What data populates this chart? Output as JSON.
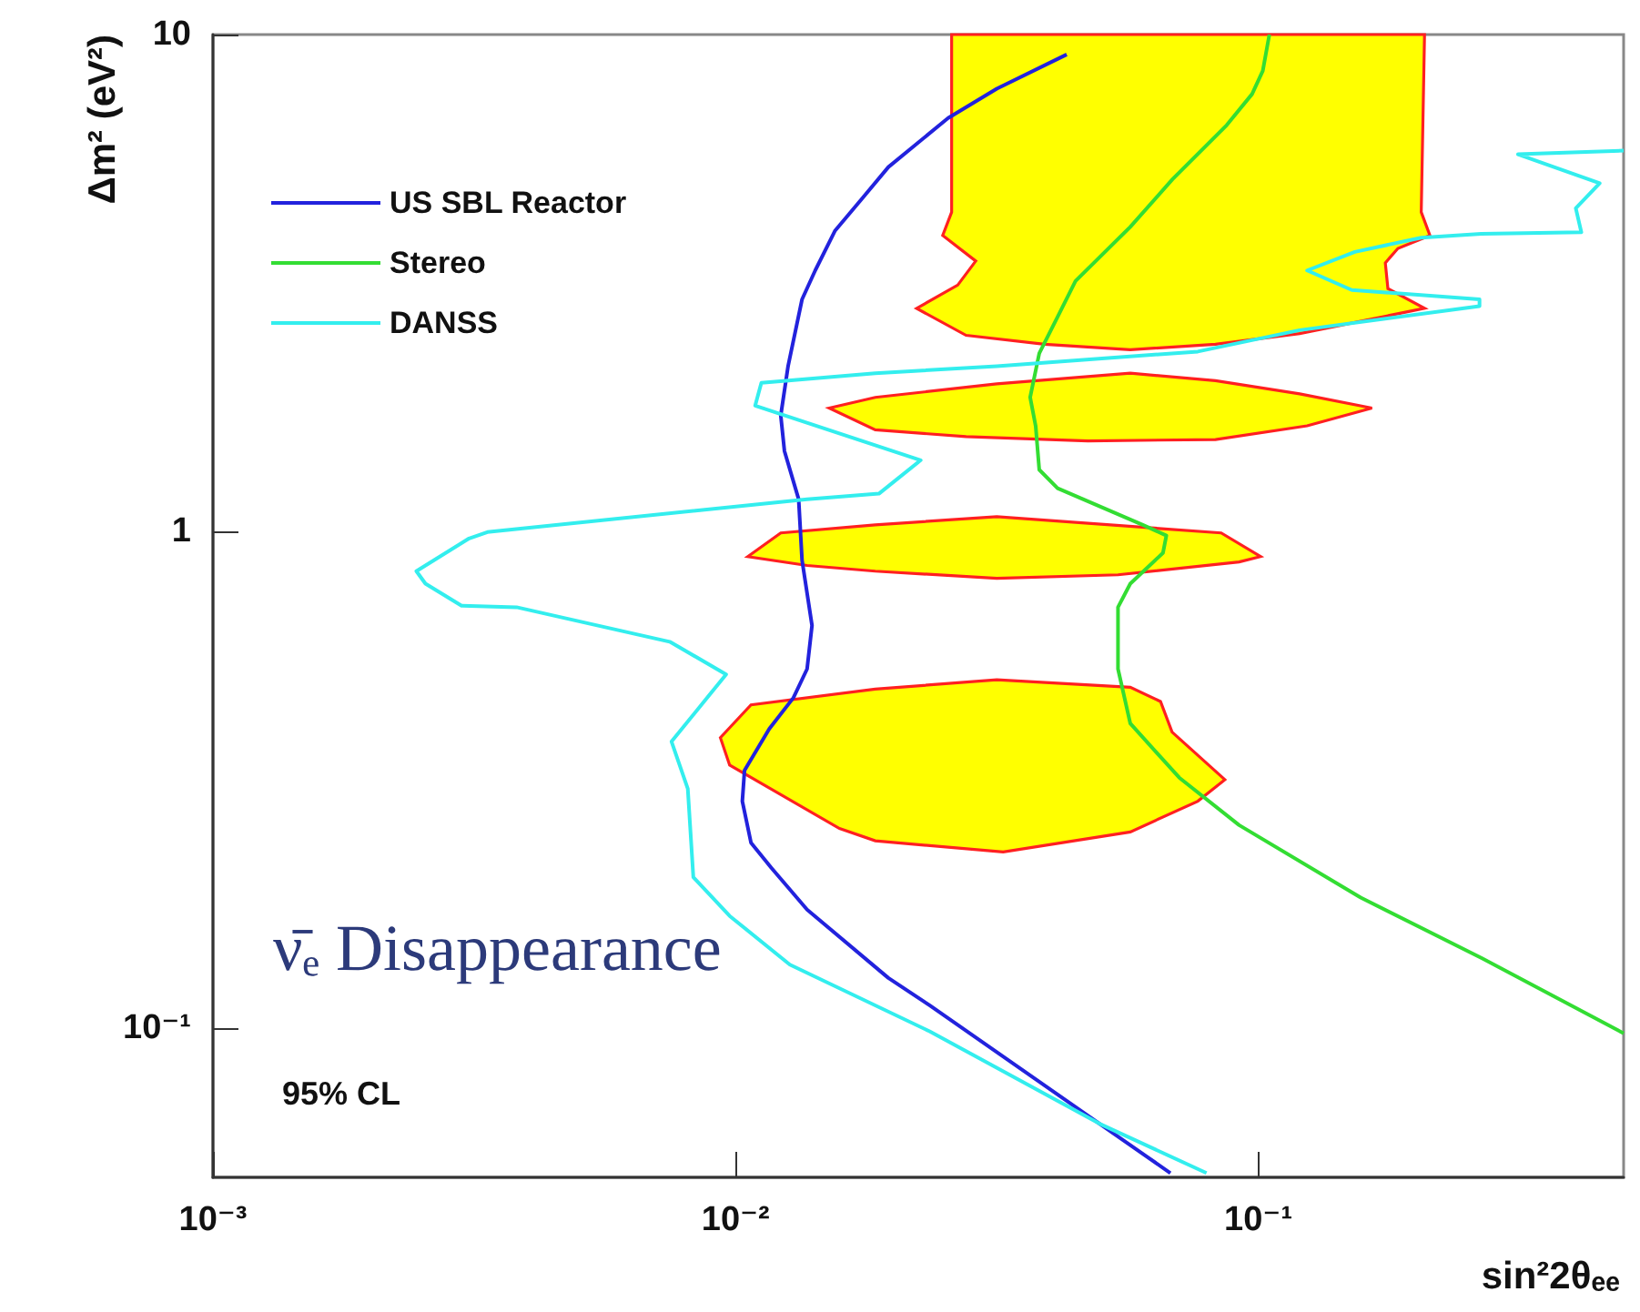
{
  "chart_data": {
    "type": "line",
    "xlabel": "sin²2θₑₑ",
    "ylabel": "Δm² (eV²)",
    "log": "xy",
    "grid": false,
    "legend": "top left",
    "xlim": [
      0.001,
      0.5
    ],
    "ylim": [
      0.05,
      10
    ],
    "xticks": [
      {
        "value": 0.001,
        "label": "10⁻³"
      },
      {
        "value": 0.01,
        "label": "10⁻²"
      },
      {
        "value": 0.1,
        "label": "10⁻¹"
      }
    ],
    "yticks": [
      {
        "value": 0.1,
        "label": "10⁻¹"
      },
      1,
      10
    ],
    "annotations": [
      "ν̄ₑ Disappearance",
      "95% CL"
    ],
    "series": [
      {
        "type": "area",
        "color": "#ffff00",
        "x": [
          0.0259,
          0.0259,
          0.0249,
          0.0288,
          0.0266,
          0.0222,
          0.0276,
          0.039,
          0.0569,
          0.0828,
          0.12,
          0.208,
          0.177,
          0.175,
          0.185,
          0.213,
          0.205,
          0.208
        ],
        "values": [
          10,
          4.39,
          3.94,
          3.5,
          3.13,
          2.81,
          2.48,
          2.38,
          2.32,
          2.38,
          2.5,
          2.81,
          3.08,
          3.47,
          3.71,
          3.94,
          4.39,
          10
        ]
      },
      {
        "type": "area",
        "color": "#ffff00",
        "x": [
          0.0151,
          0.0185,
          0.0316,
          0.0569,
          0.0828,
          0.12,
          0.165,
          0.124,
          0.0828,
          0.0472,
          0.0276,
          0.0185
        ],
        "values": [
          1.77,
          1.86,
          1.98,
          2.08,
          2.01,
          1.89,
          1.77,
          1.63,
          1.53,
          1.52,
          1.55,
          1.6
        ]
      },
      {
        "type": "area",
        "color": "#ffff00",
        "x": [
          0.01055,
          0.0122,
          0.0185,
          0.0316,
          0.0849,
          0.101,
          0.0919,
          0.0539,
          0.0316,
          0.0185,
          0.0137
        ],
        "values": [
          0.889,
          0.992,
          1.03,
          1.07,
          0.992,
          0.889,
          0.867,
          0.817,
          0.804,
          0.831,
          0.853
        ]
      },
      {
        "type": "area",
        "color": "#ffff00",
        "x": [
          0.00935,
          0.0107,
          0.0185,
          0.0316,
          0.0569,
          0.065,
          0.0684,
          0.0863,
          0.0766,
          0.0569,
          0.0325,
          0.0185,
          0.0158,
          0.00974
        ],
        "values": [
          0.384,
          0.447,
          0.481,
          0.502,
          0.485,
          0.454,
          0.394,
          0.316,
          0.286,
          0.248,
          0.226,
          0.238,
          0.252,
          0.338
        ]
      },
      {
        "type": "line",
        "name": "US SBL Reactor",
        "color": "#2222dd",
        "x": [
          0.0679,
          0.0497,
          0.0235,
          0.0196,
          0.0137,
          0.0117,
          0.0107,
          0.0103,
          0.0104,
          0.0116,
          0.0129,
          0.0137,
          0.014,
          0.0134,
          0.0132,
          0.0124,
          0.0122,
          0.0126,
          0.0134,
          0.0142,
          0.0155,
          0.0175,
          0.0196,
          0.0255,
          0.0316,
          0.043
        ],
        "values": [
          0.051,
          0.0641,
          0.111,
          0.126,
          0.173,
          0.21,
          0.236,
          0.286,
          0.33,
          0.4,
          0.462,
          0.528,
          0.646,
          0.874,
          1.16,
          1.45,
          1.71,
          2.15,
          2.93,
          3.35,
          4.03,
          4.69,
          5.41,
          6.79,
          7.78,
          9.12
        ]
      },
      {
        "type": "line",
        "name": "Stereo",
        "color": "#33dd33",
        "x": [
          0.105,
          0.102,
          0.0973,
          0.087,
          0.0685,
          0.0569,
          0.0447,
          0.0413,
          0.0381,
          0.0366,
          0.0375,
          0.0381,
          0.0413,
          0.0601,
          0.0667,
          0.0657,
          0.0569,
          0.0539,
          0.0539,
          0.0569,
          0.0706,
          0.0919,
          0.157,
          0.268,
          0.5
        ],
        "values": [
          10,
          8.45,
          7.59,
          6.57,
          5.11,
          4.1,
          3.19,
          2.7,
          2.28,
          1.86,
          1.63,
          1.33,
          1.22,
          1.03,
          0.98,
          0.904,
          0.784,
          0.703,
          0.528,
          0.41,
          0.319,
          0.256,
          0.183,
          0.138,
          0.0975
        ]
      },
      {
        "type": "line",
        "name": "DANSS",
        "color": "#33eeee",
        "x": [
          0.5,
          0.314,
          0.45,
          0.405,
          0.415,
          0.267,
          0.205,
          0.153,
          0.124,
          0.151,
          0.265,
          0.265,
          0.12,
          0.0766,
          0.0316,
          0.0185,
          0.0112,
          0.0109,
          0.0226,
          0.0188,
          0.0137,
          0.00335,
          0.00309,
          0.00245,
          0.00255,
          0.00299,
          0.00381,
          0.00748,
          0.00959,
          0.00754,
          0.0081,
          0.0083,
          0.00974,
          0.0127,
          0.0235,
          0.0497,
          0.0796
        ],
        "values": [
          5.84,
          5.74,
          5.02,
          4.47,
          4.0,
          3.97,
          3.9,
          3.65,
          3.35,
          3.06,
          2.93,
          2.84,
          2.54,
          2.3,
          2.15,
          2.08,
          1.99,
          1.79,
          1.39,
          1.19,
          1.16,
          0.996,
          0.967,
          0.831,
          0.784,
          0.708,
          0.703,
          0.599,
          0.515,
          0.377,
          0.303,
          0.201,
          0.168,
          0.134,
          0.0984,
          0.0641,
          0.051
        ]
      }
    ]
  }
}
